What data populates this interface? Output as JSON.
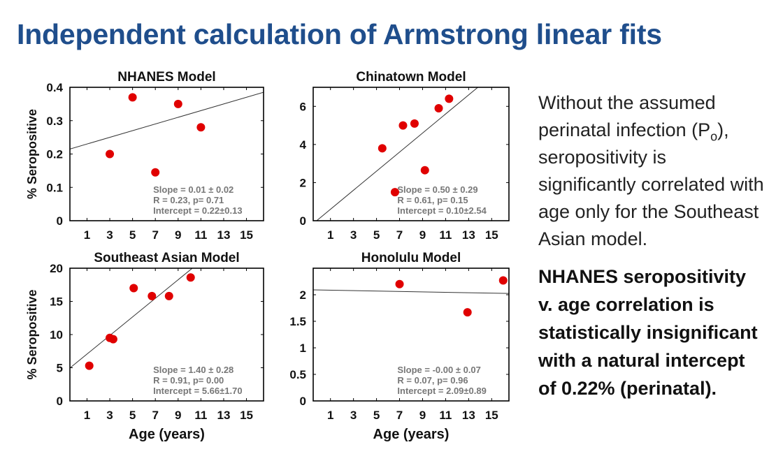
{
  "slide": {
    "title": "Independent calculation of Armstrong linear fits",
    "right_text": {
      "paragraph_pre": "Without the assumed perinatal infection (P",
      "paragraph_sub": "o",
      "paragraph_post": "), seropositivity is significantly correlated with age only for the Southeast Asian model.",
      "bold": "NHANES seropositivity v. age correlation is statistically insignificant with a natural intercept of 0.22% (perinatal)."
    }
  },
  "colors": {
    "title": "#1f4e8c",
    "points": "#e00000",
    "fit_line": "#333333",
    "stats_text": "#777777"
  },
  "chart_data": [
    {
      "type": "scatter",
      "title": "NHANES Model",
      "xlabel": "",
      "ylabel": "% Seropositive",
      "xlim": [
        -0.5,
        16.5
      ],
      "ylim": [
        0,
        0.4
      ],
      "xticks": [
        1,
        3,
        5,
        7,
        9,
        11,
        13,
        15
      ],
      "yticks": [
        0,
        0.1,
        0.2,
        0.3,
        0.4
      ],
      "ytick_labels": [
        "0",
        "0.1",
        "0.2",
        "0.3",
        "0.4"
      ],
      "points": [
        [
          3,
          0.2
        ],
        [
          5,
          0.37
        ],
        [
          7,
          0.145
        ],
        [
          9,
          0.35
        ],
        [
          11,
          0.28
        ]
      ],
      "fit": {
        "slope": 0.01,
        "intercept": 0.22
      },
      "stats": [
        "Slope = 0.01 ± 0.02",
        "R = 0.23, p= 0.71",
        "Intercept = 0.22±0.13"
      ]
    },
    {
      "type": "scatter",
      "title": "Chinatown Model",
      "xlabel": "",
      "ylabel": "",
      "xlim": [
        -0.5,
        16.5
      ],
      "ylim": [
        0,
        7
      ],
      "xticks": [
        1,
        3,
        5,
        7,
        9,
        11,
        13,
        15
      ],
      "yticks": [
        0,
        2,
        4,
        6
      ],
      "ytick_labels": [
        "0",
        "2",
        "4",
        "6"
      ],
      "points": [
        [
          5.5,
          3.8
        ],
        [
          6.6,
          1.5
        ],
        [
          7.3,
          5.0
        ],
        [
          8.3,
          5.1
        ],
        [
          9.2,
          2.65
        ],
        [
          10.4,
          5.9
        ],
        [
          11.3,
          6.4
        ]
      ],
      "fit": {
        "slope": 0.5,
        "intercept": 0.1
      },
      "stats": [
        "Slope = 0.50 ± 0.29",
        "R = 0.61, p= 0.15",
        "Intercept = 0.10±2.54"
      ]
    },
    {
      "type": "scatter",
      "title": "Southeast Asian Model",
      "xlabel": "Age (years)",
      "ylabel": "% Seropositive",
      "xlim": [
        -0.5,
        16.5
      ],
      "ylim": [
        0,
        20
      ],
      "xticks": [
        1,
        3,
        5,
        7,
        9,
        11,
        13,
        15
      ],
      "yticks": [
        0,
        5,
        10,
        15,
        20
      ],
      "ytick_labels": [
        "0",
        "5",
        "10",
        "15",
        "20"
      ],
      "points": [
        [
          1.2,
          5.3
        ],
        [
          3.0,
          9.5
        ],
        [
          3.3,
          9.3
        ],
        [
          5.1,
          17.0
        ],
        [
          6.7,
          15.8
        ],
        [
          8.2,
          15.8
        ],
        [
          10.1,
          18.6
        ]
      ],
      "fit": {
        "slope": 1.4,
        "intercept": 5.66
      },
      "stats": [
        "Slope = 1.40 ± 0.28",
        "R = 0.91, p= 0.00",
        "Intercept = 5.66±1.70"
      ]
    },
    {
      "type": "scatter",
      "title": "Honolulu Model",
      "xlabel": "Age (years)",
      "ylabel": "",
      "xlim": [
        -0.5,
        16.5
      ],
      "ylim": [
        0,
        2.5
      ],
      "xticks": [
        1,
        3,
        5,
        7,
        9,
        11,
        13,
        15
      ],
      "yticks": [
        0,
        0.5,
        1,
        1.5,
        2
      ],
      "ytick_labels": [
        "0",
        "0.5",
        "1",
        "1.5",
        "2"
      ],
      "points": [
        [
          7.0,
          2.2
        ],
        [
          12.9,
          1.67
        ],
        [
          16.0,
          2.27
        ]
      ],
      "fit": {
        "slope": -0.004,
        "intercept": 2.09
      },
      "stats": [
        "Slope = -0.00 ± 0.07",
        "R = 0.07, p= 0.96",
        "Intercept = 2.09±0.89"
      ]
    }
  ]
}
